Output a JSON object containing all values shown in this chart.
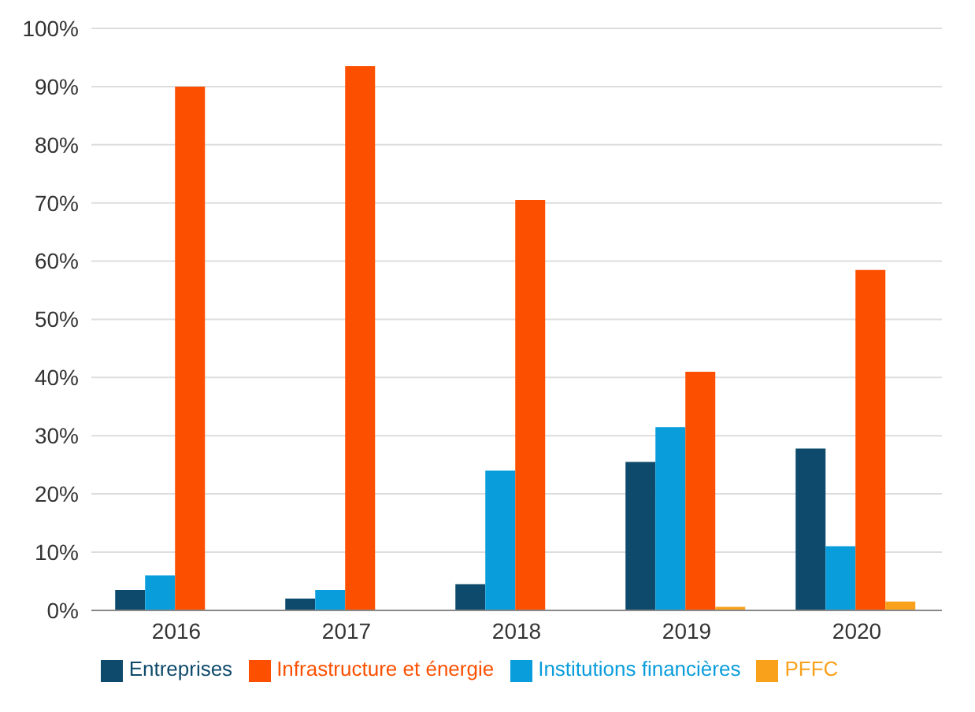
{
  "chart_data": {
    "type": "bar",
    "categories": [
      "2016",
      "2017",
      "2018",
      "2019",
      "2020"
    ],
    "series": [
      {
        "name": "Entreprises",
        "color": "#0d4a6b",
        "values": [
          3.5,
          2,
          4.5,
          25.5,
          27.8
        ]
      },
      {
        "name": "Institutions financières",
        "color": "#0a9ddb",
        "values": [
          6,
          3.5,
          24,
          31.5,
          11
        ]
      },
      {
        "name": "Infrastructure et énergie",
        "color": "#fc5000",
        "values": [
          90,
          93.5,
          70.5,
          41,
          58.5
        ]
      },
      {
        "name": "PFFC",
        "color": "#f9a11b",
        "values": [
          0,
          0,
          0,
          0.6,
          1.5
        ]
      }
    ],
    "ylim": [
      0,
      100
    ],
    "yticks": [
      {
        "value": 0,
        "label": "0%"
      },
      {
        "value": 10,
        "label": "10%"
      },
      {
        "value": 20,
        "label": "20%"
      },
      {
        "value": 30,
        "label": "30%"
      },
      {
        "value": 40,
        "label": "40%"
      },
      {
        "value": 50,
        "label": "50%"
      },
      {
        "value": 60,
        "label": "60%"
      },
      {
        "value": 70,
        "label": "70%"
      },
      {
        "value": 80,
        "label": "80%"
      },
      {
        "value": 90,
        "label": "90%"
      },
      {
        "value": 100,
        "label": "100%"
      }
    ],
    "grid": "y",
    "legend": "bottom"
  }
}
